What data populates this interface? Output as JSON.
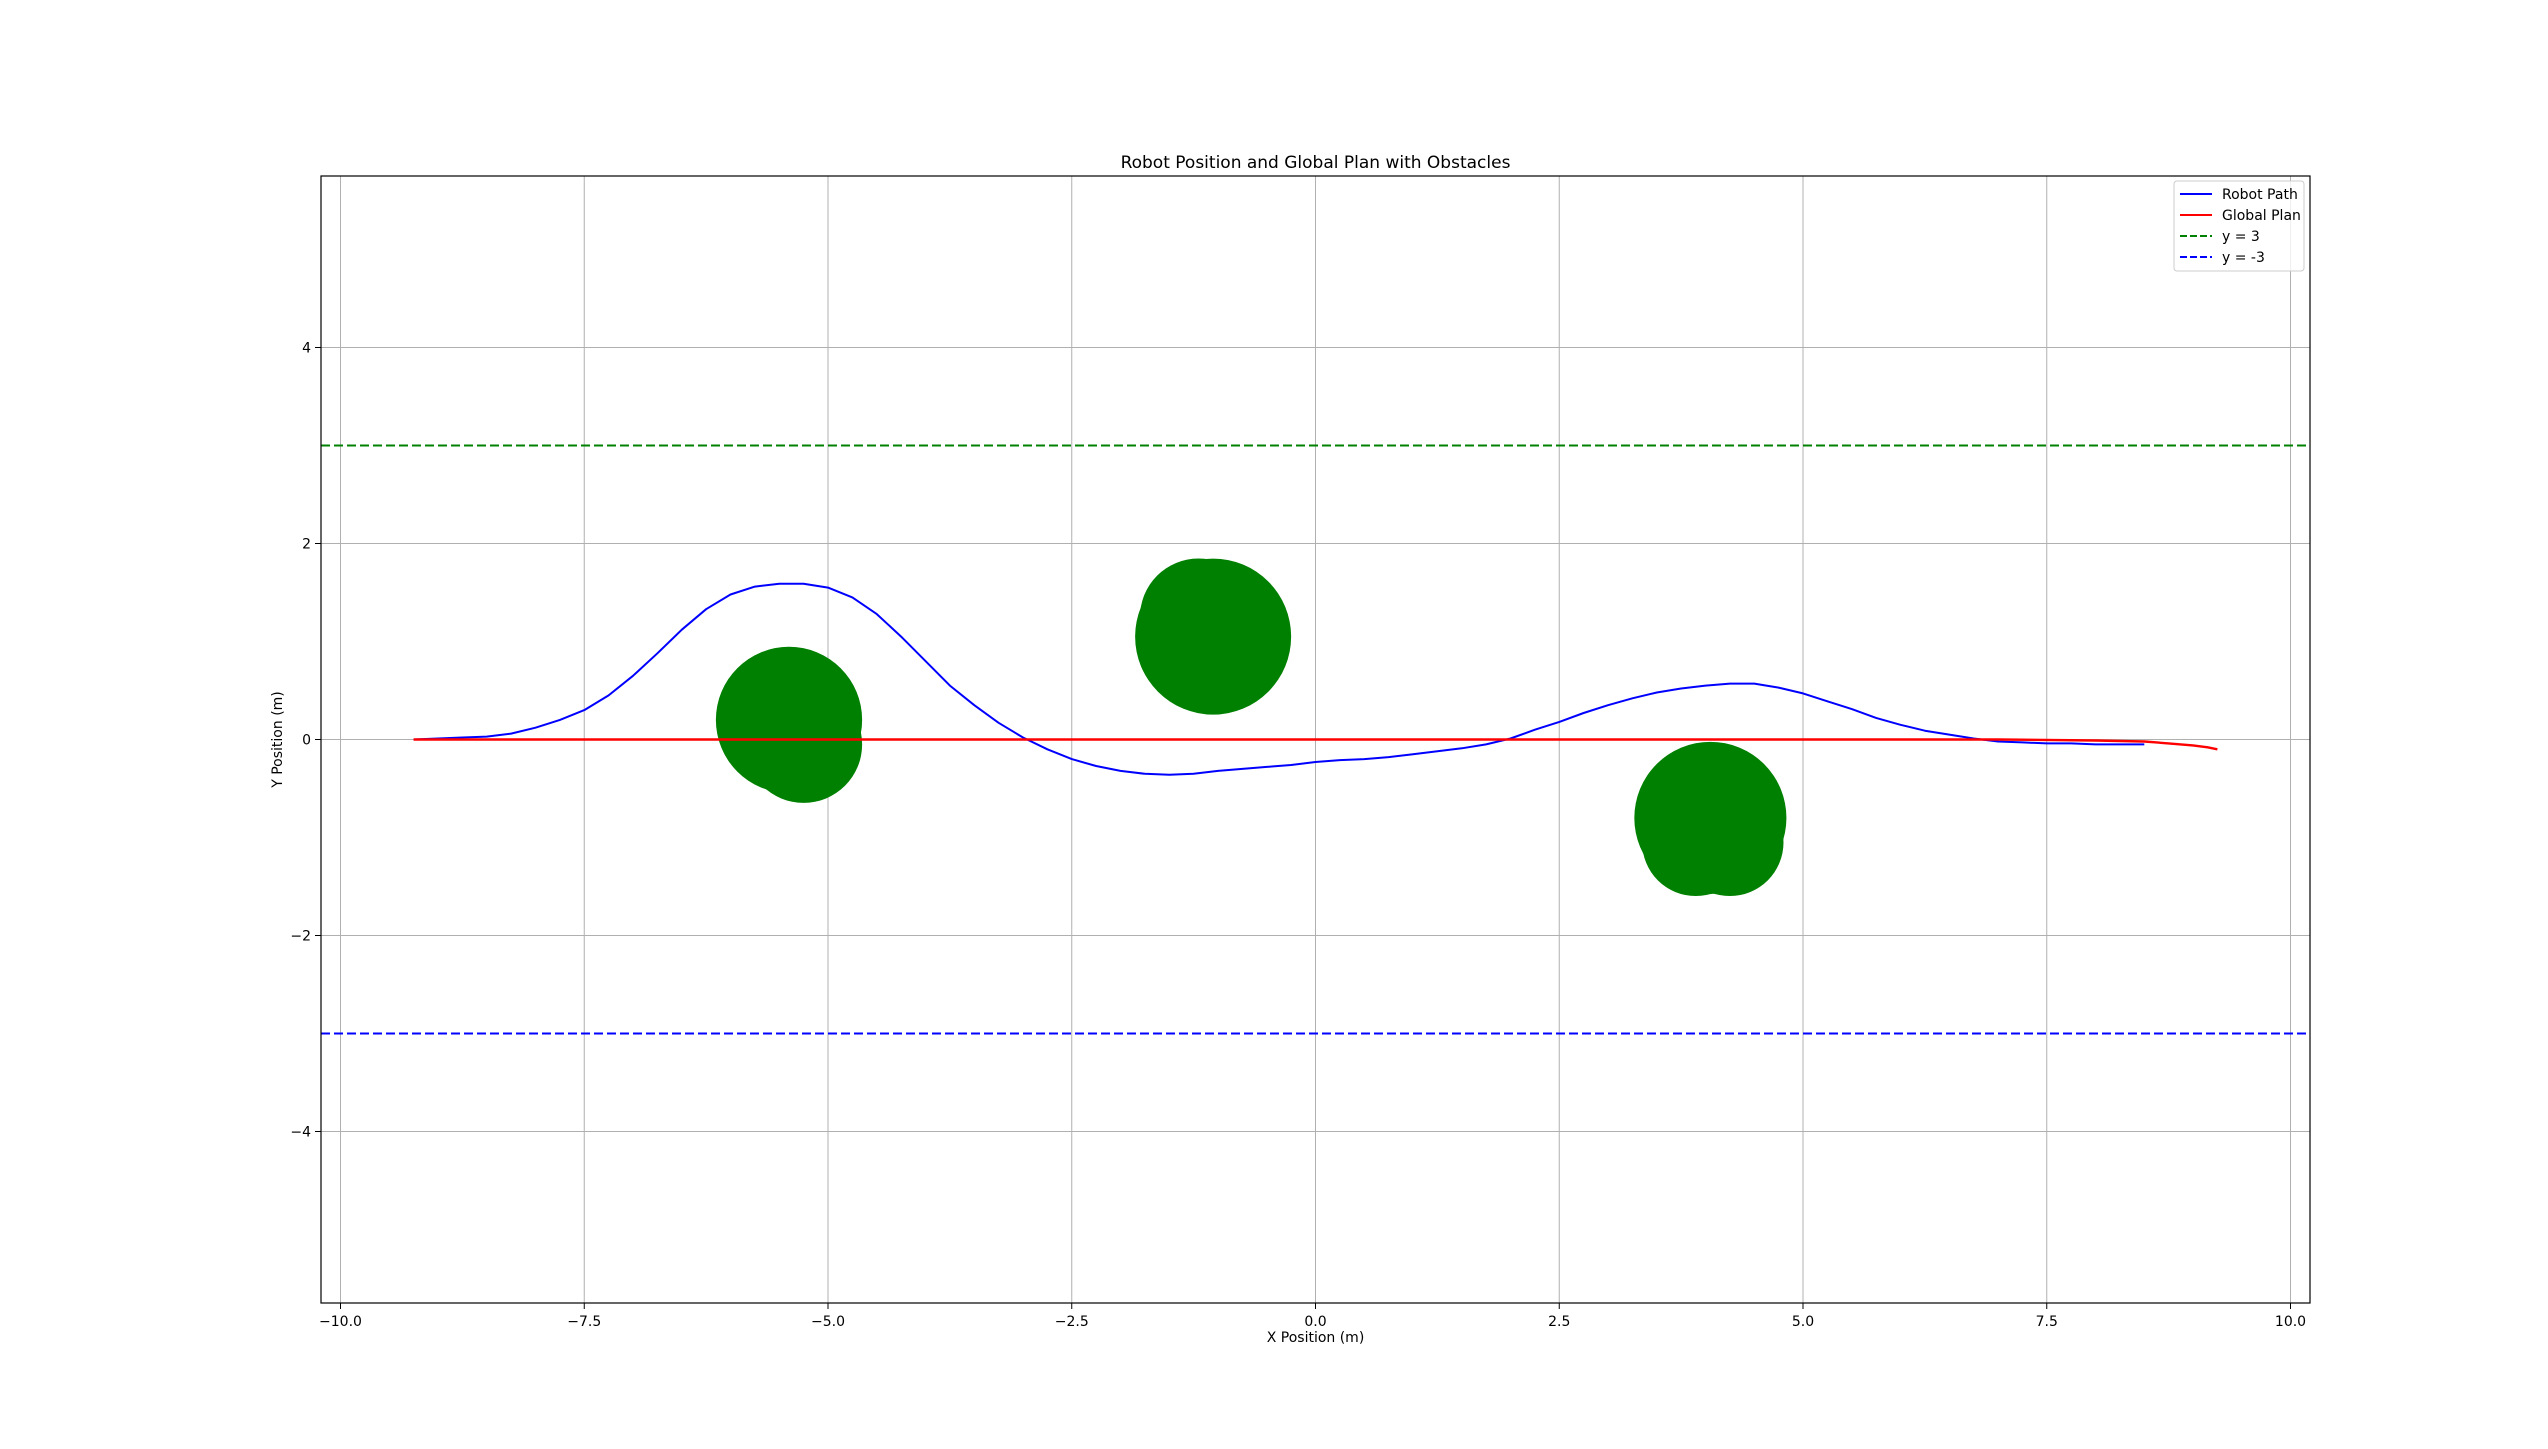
{
  "chart_data": {
    "type": "line",
    "title": "Robot Position and Global Plan with Obstacles",
    "xlabel": "X Position (m)",
    "ylabel": "Y Position (m)",
    "xlim": [
      -10.2,
      10.2
    ],
    "ylim": [
      -5.75,
      5.75
    ],
    "xticks": [
      -10.0,
      -7.5,
      -5.0,
      -2.5,
      0.0,
      2.5,
      5.0,
      7.5,
      10.0
    ],
    "xtick_labels": [
      "−10.0",
      "−7.5",
      "−5.0",
      "−2.5",
      "0.0",
      "2.5",
      "5.0",
      "7.5",
      "10.0"
    ],
    "yticks": [
      -4,
      -2,
      0,
      2,
      4
    ],
    "ytick_labels": [
      "−4",
      "−2",
      "0",
      "2",
      "4"
    ],
    "grid": true,
    "legend_placement": "top-right",
    "series": [
      {
        "name": "Robot Path",
        "color": "#0000ff",
        "style": "solid",
        "x": [
          -9.25,
          -9.0,
          -8.75,
          -8.5,
          -8.25,
          -8.0,
          -7.75,
          -7.5,
          -7.25,
          -7.0,
          -6.75,
          -6.5,
          -6.25,
          -6.0,
          -5.75,
          -5.5,
          -5.25,
          -5.0,
          -4.75,
          -4.5,
          -4.25,
          -4.0,
          -3.75,
          -3.5,
          -3.25,
          -3.0,
          -2.75,
          -2.5,
          -2.25,
          -2.0,
          -1.75,
          -1.5,
          -1.25,
          -1.0,
          -0.75,
          -0.5,
          -0.25,
          0.0,
          0.25,
          0.5,
          0.75,
          1.0,
          1.25,
          1.5,
          1.75,
          2.0,
          2.25,
          2.5,
          2.75,
          3.0,
          3.25,
          3.5,
          3.75,
          4.0,
          4.25,
          4.5,
          4.75,
          5.0,
          5.25,
          5.5,
          5.75,
          6.0,
          6.25,
          6.5,
          6.75,
          7.0,
          7.25,
          7.5,
          7.75,
          8.0,
          8.25,
          8.5
        ],
        "y": [
          0.0,
          0.01,
          0.02,
          0.03,
          0.06,
          0.12,
          0.2,
          0.3,
          0.45,
          0.65,
          0.88,
          1.12,
          1.33,
          1.48,
          1.56,
          1.59,
          1.59,
          1.55,
          1.45,
          1.28,
          1.05,
          0.8,
          0.55,
          0.35,
          0.17,
          0.02,
          -0.1,
          -0.2,
          -0.27,
          -0.32,
          -0.35,
          -0.36,
          -0.35,
          -0.32,
          -0.3,
          -0.28,
          -0.26,
          -0.23,
          -0.21,
          -0.2,
          -0.18,
          -0.15,
          -0.12,
          -0.09,
          -0.05,
          0.01,
          0.1,
          0.18,
          0.27,
          0.35,
          0.42,
          0.48,
          0.52,
          0.55,
          0.57,
          0.57,
          0.53,
          0.47,
          0.39,
          0.31,
          0.22,
          0.15,
          0.09,
          0.05,
          0.01,
          -0.02,
          -0.03,
          -0.04,
          -0.04,
          -0.05,
          -0.05,
          -0.05
        ]
      },
      {
        "name": "Global Plan",
        "color": "#ff0000",
        "style": "solid",
        "x": [
          -9.25,
          -7.0,
          -5.0,
          -3.0,
          -1.0,
          1.0,
          3.0,
          5.0,
          7.0,
          8.0,
          8.5,
          8.75,
          9.0,
          9.15,
          9.25
        ],
        "y": [
          0.0,
          0.0,
          0.0,
          0.0,
          0.0,
          0.0,
          0.0,
          0.0,
          0.0,
          -0.01,
          -0.02,
          -0.04,
          -0.06,
          -0.08,
          -0.1
        ]
      },
      {
        "name": "y = 3",
        "color": "#008000",
        "style": "dashed",
        "x": [
          -10.2,
          10.2
        ],
        "y": [
          3,
          3
        ]
      },
      {
        "name": "y = -3",
        "color": "#0000ff",
        "style": "dashed",
        "x": [
          -10.2,
          10.2
        ],
        "y": [
          -3,
          -3
        ]
      }
    ],
    "obstacles": [
      {
        "color": "#008000",
        "x": -5.4,
        "y": 0.2,
        "r": 0.75
      },
      {
        "color": "#008000",
        "x": -5.25,
        "y": -0.05,
        "r": 0.6
      },
      {
        "color": "#008000",
        "x": -1.05,
        "y": 1.05,
        "r": 0.8
      },
      {
        "color": "#008000",
        "x": -1.2,
        "y": 1.25,
        "r": 0.6
      },
      {
        "color": "#008000",
        "x": 4.05,
        "y": -0.8,
        "r": 0.78
      },
      {
        "color": "#008000",
        "x": 3.9,
        "y": -1.05,
        "r": 0.55
      },
      {
        "color": "#008000",
        "x": 4.25,
        "y": -1.05,
        "r": 0.55
      }
    ]
  }
}
